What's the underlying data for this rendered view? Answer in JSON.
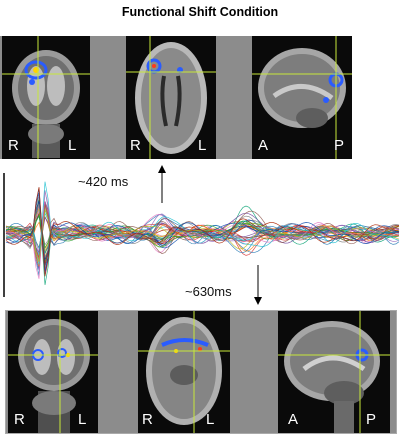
{
  "title": "Functional Shift Condition",
  "annotations": {
    "top": "~420 ms",
    "bottom": "~630ms"
  },
  "top_row": [
    {
      "view": "coronal",
      "left": "R",
      "right": "L"
    },
    {
      "view": "axial",
      "left": "R",
      "right": "L"
    },
    {
      "view": "sagittal",
      "left": "A",
      "right": "P"
    }
  ],
  "bottom_row": [
    {
      "view": "coronal",
      "left": "R",
      "right": "L"
    },
    {
      "view": "axial",
      "left": "R",
      "right": "L"
    },
    {
      "view": "sagittal",
      "left": "A",
      "right": "P"
    }
  ],
  "colors": {
    "crosshair": "#c8e83a",
    "activation": "#2a5cff",
    "panel_bg": "#8c8c8c"
  }
}
